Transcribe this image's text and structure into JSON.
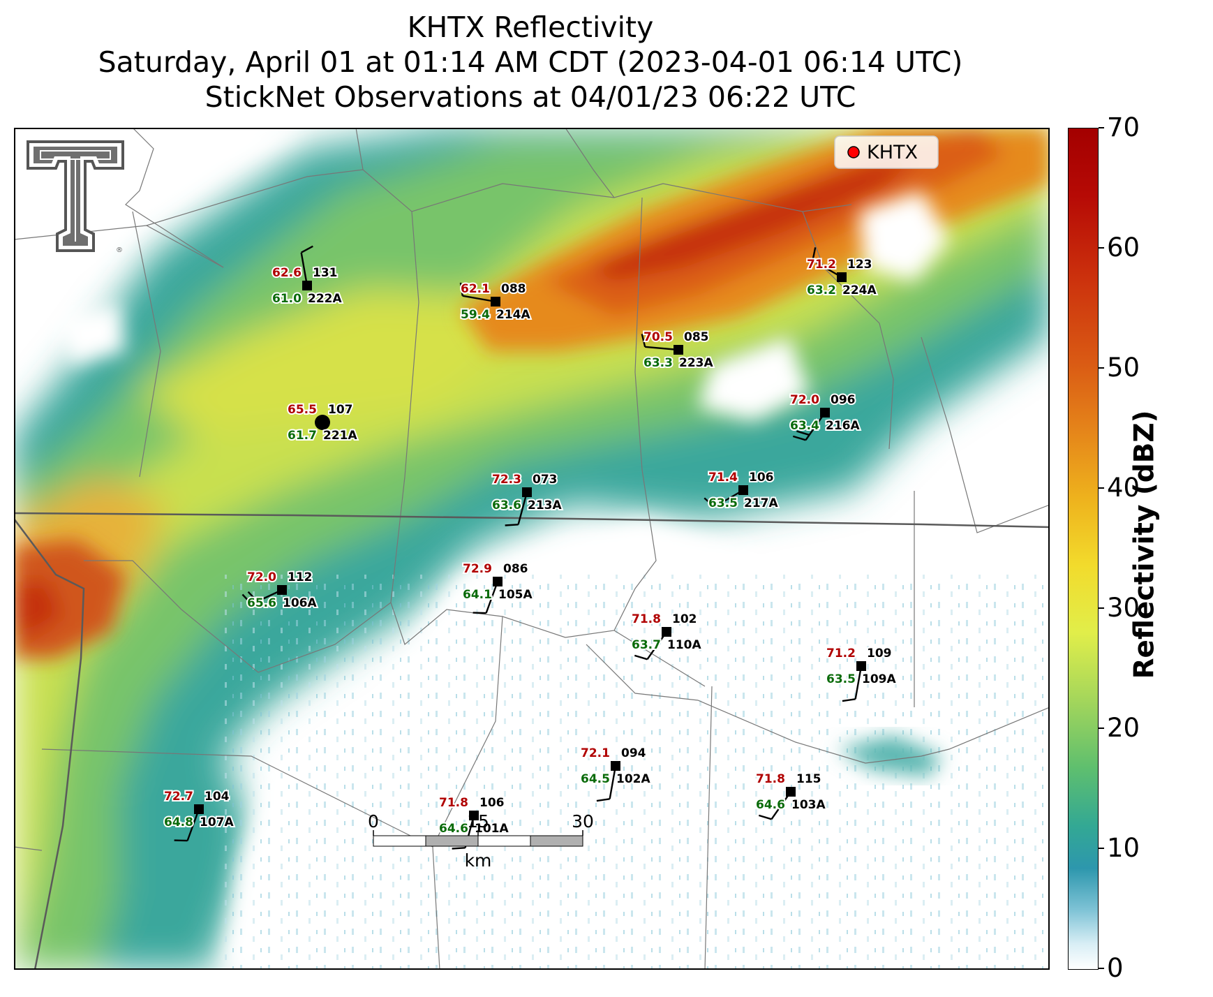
{
  "title": {
    "line1": "KHTX Reflectivity",
    "line2": "Saturday, April 01 at 01:14 AM CDT (2023-04-01 06:14 UTC)",
    "line3": "StickNet Observations at 04/01/23 06:22 UTC"
  },
  "colorbar": {
    "label": "Reflectivity (dBZ)",
    "min": 0,
    "max": 70,
    "ticks": [
      "0",
      "10",
      "20",
      "30",
      "40",
      "50",
      "60",
      "70"
    ]
  },
  "legend": {
    "label": "KHTX",
    "marker_color": "#ff0000"
  },
  "scale_bar": {
    "unit": "km",
    "labels": [
      "0",
      "15",
      "30"
    ]
  },
  "logo": {
    "name": "Texas Tech double-T logo"
  },
  "colors": {
    "temperature": "#b00000",
    "dewpoint": "#0a6b0a",
    "station_text": "#000000",
    "border": "#555555"
  },
  "stations": [
    {
      "id": "222A",
      "temp": "62.6",
      "dew": "61.0",
      "pressure": "131",
      "wind_from": 350,
      "flags": 1
    },
    {
      "id": "214A",
      "temp": "62.1",
      "dew": "59.4",
      "pressure": "088",
      "wind_from": 280,
      "flags": 1
    },
    {
      "id": "224A",
      "temp": "71.2",
      "dew": "63.2",
      "pressure": "123",
      "wind_from": 300,
      "flags": 1
    },
    {
      "id": "223A",
      "temp": "70.5",
      "dew": "63.3",
      "pressure": "085",
      "wind_from": 275,
      "flags": 1
    },
    {
      "id": "221A",
      "temp": "65.5",
      "dew": "61.7",
      "pressure": "107",
      "wind_from": null,
      "flags": 0,
      "calm": true
    },
    {
      "id": "216A",
      "temp": "72.0",
      "dew": "63.4",
      "pressure": "096",
      "wind_from": 215,
      "flags": 2
    },
    {
      "id": "213A",
      "temp": "72.3",
      "dew": "63.6",
      "pressure": "073",
      "wind_from": 195,
      "flags": 1
    },
    {
      "id": "217A",
      "temp": "71.4",
      "dew": "63.5",
      "pressure": "106",
      "wind_from": 240,
      "flags": 1
    },
    {
      "id": "106A",
      "temp": "72.0",
      "dew": "65.6",
      "pressure": "112",
      "wind_from": 245,
      "flags": 2
    },
    {
      "id": "105A",
      "temp": "72.9",
      "dew": "64.1",
      "pressure": "086",
      "wind_from": 200,
      "flags": 1
    },
    {
      "id": "110A",
      "temp": "71.8",
      "dew": "63.7",
      "pressure": "102",
      "wind_from": 215,
      "flags": 1
    },
    {
      "id": "109A",
      "temp": "71.2",
      "dew": "63.5",
      "pressure": "109",
      "wind_from": 190,
      "flags": 1
    },
    {
      "id": "107A",
      "temp": "72.7",
      "dew": "64.8",
      "pressure": "104",
      "wind_from": 200,
      "flags": 1
    },
    {
      "id": "101A",
      "temp": "71.8",
      "dew": "64.6",
      "pressure": "106",
      "wind_from": 195,
      "flags": 1
    },
    {
      "id": "102A",
      "temp": "72.1",
      "dew": "64.5",
      "pressure": "094",
      "wind_from": 190,
      "flags": 1
    },
    {
      "id": "103A",
      "temp": "71.8",
      "dew": "64.6",
      "pressure": "115",
      "wind_from": 215,
      "flags": 1
    }
  ]
}
